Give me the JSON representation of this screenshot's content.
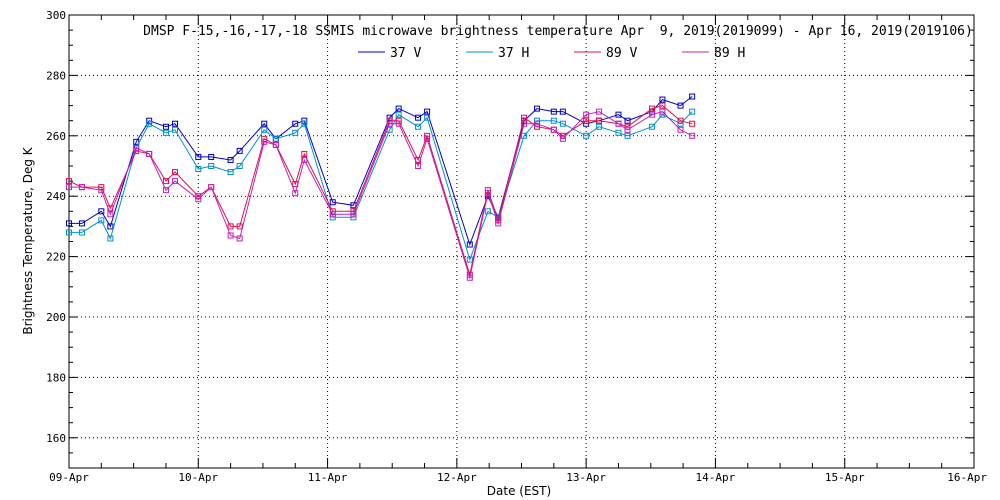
{
  "chart_data": {
    "type": "line",
    "title": "DMSP F-15,-16,-17,-18 SSMIS microwave brightness temperature Apr  9, 2019(2019099) - Apr 16, 2019(2019106)",
    "xlabel": "Date (EST)",
    "ylabel": "Brightness Temperature, Deg K",
    "ylim": [
      150,
      300
    ],
    "xlim": [
      0,
      7
    ],
    "grid": true,
    "legend_position": "top-center",
    "y_ticks": [
      160,
      180,
      200,
      220,
      240,
      260,
      280,
      300
    ],
    "x_tick_positions": [
      0,
      1,
      2,
      3,
      4,
      5,
      6,
      7
    ],
    "x_tick_labels": [
      "09-Apr",
      "10-Apr",
      "11-Apr",
      "12-Apr",
      "13-Apr",
      "14-Apr",
      "15-Apr",
      "16-Apr"
    ],
    "series": [
      {
        "name": "37 V",
        "color": "#0000c8",
        "x": [
          0.0,
          0.1,
          0.25,
          0.32,
          0.52,
          0.62,
          0.75,
          0.82,
          1.0,
          1.1,
          1.25,
          1.32,
          1.51,
          1.6,
          1.75,
          1.82,
          2.04,
          2.2,
          2.48,
          2.55,
          2.7,
          2.77,
          3.1,
          3.24,
          3.32,
          3.52,
          3.62,
          3.75,
          3.82,
          4.0,
          4.1,
          4.25,
          4.32,
          4.51,
          4.59,
          4.73,
          4.82
        ],
        "values": [
          231,
          231,
          235,
          230,
          258,
          265,
          263,
          264,
          253,
          253,
          252,
          255,
          264,
          259,
          264,
          265,
          238,
          237,
          266,
          269,
          266,
          268,
          224,
          240,
          233,
          265,
          269,
          268,
          268,
          264,
          265,
          267,
          265,
          268,
          272,
          270,
          273
        ]
      },
      {
        "name": "37 H",
        "color": "#0090d0",
        "x": [
          0.0,
          0.1,
          0.25,
          0.32,
          0.52,
          0.62,
          0.75,
          0.82,
          1.0,
          1.1,
          1.25,
          1.32,
          1.51,
          1.6,
          1.75,
          1.82,
          2.04,
          2.2,
          2.48,
          2.55,
          2.7,
          2.77,
          3.1,
          3.24,
          3.32,
          3.52,
          3.62,
          3.75,
          3.82,
          4.0,
          4.1,
          4.25,
          4.32,
          4.51,
          4.59,
          4.73,
          4.82
        ],
        "values": [
          228,
          228,
          232,
          226,
          256,
          264,
          261,
          262,
          249,
          250,
          248,
          250,
          262,
          259,
          261,
          264,
          233,
          233,
          262,
          267,
          263,
          266,
          219,
          235,
          233,
          260,
          265,
          265,
          264,
          260,
          263,
          261,
          260,
          263,
          267,
          264,
          268
        ]
      },
      {
        "name": "89 V",
        "color": "#e0104a",
        "x": [
          0.0,
          0.1,
          0.25,
          0.32,
          0.52,
          0.62,
          0.75,
          0.82,
          1.0,
          1.1,
          1.25,
          1.32,
          1.51,
          1.6,
          1.75,
          1.82,
          2.04,
          2.2,
          2.48,
          2.55,
          2.7,
          2.77,
          3.1,
          3.24,
          3.32,
          3.52,
          3.62,
          3.75,
          3.82,
          4.0,
          4.1,
          4.25,
          4.32,
          4.51,
          4.59,
          4.73,
          4.82
        ],
        "values": [
          245,
          243,
          243,
          236,
          255,
          254,
          245,
          248,
          240,
          243,
          230,
          230,
          259,
          257,
          244,
          254,
          235,
          235,
          265,
          265,
          252,
          260,
          214,
          242,
          232,
          266,
          263,
          262,
          260,
          265,
          265,
          264,
          263,
          269,
          270,
          265,
          264
        ]
      },
      {
        "name": "89 H",
        "color": "#c020c0",
        "x": [
          0.0,
          0.1,
          0.25,
          0.32,
          0.52,
          0.62,
          0.75,
          0.82,
          1.0,
          1.1,
          1.25,
          1.32,
          1.51,
          1.6,
          1.75,
          1.82,
          2.04,
          2.2,
          2.48,
          2.55,
          2.7,
          2.77,
          3.1,
          3.24,
          3.32,
          3.52,
          3.62,
          3.75,
          3.82,
          4.0,
          4.1,
          4.25,
          4.32,
          4.51,
          4.59,
          4.73,
          4.82
        ],
        "values": [
          243,
          243,
          242,
          234,
          256,
          254,
          242,
          245,
          239,
          243,
          227,
          226,
          258,
          257,
          241,
          252,
          234,
          234,
          264,
          264,
          250,
          259,
          213,
          241,
          231,
          264,
          264,
          262,
          259,
          267,
          268,
          264,
          262,
          267,
          268,
          262,
          260
        ]
      }
    ]
  }
}
